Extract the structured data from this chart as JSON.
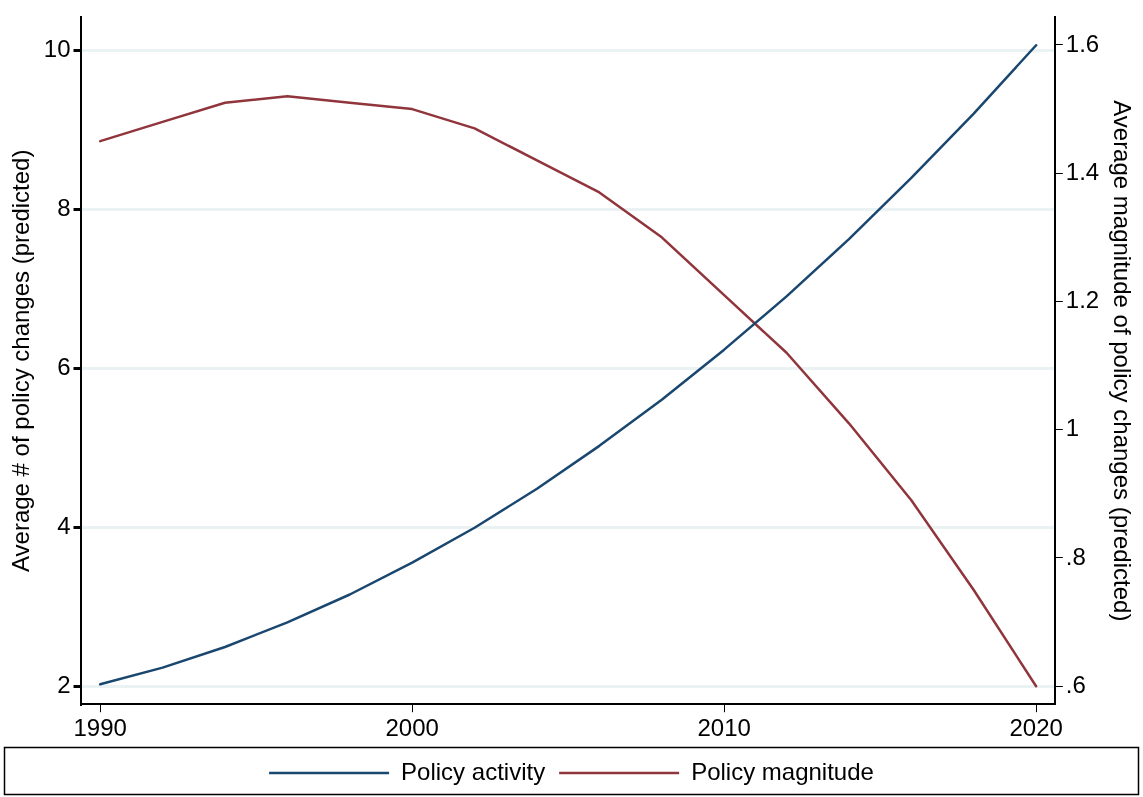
{
  "chart_data": {
    "type": "line",
    "x": [
      1990,
      1992,
      1994,
      1996,
      1998,
      2000,
      2002,
      2004,
      2006,
      2008,
      2010,
      2012,
      2014,
      2016,
      2018,
      2020
    ],
    "series": [
      {
        "name": "Policy activity",
        "color": "#1a476f",
        "values": [
          2.03,
          2.24,
          2.5,
          2.81,
          3.16,
          3.56,
          4.0,
          4.49,
          5.03,
          5.61,
          6.24,
          6.91,
          7.63,
          8.4,
          9.21,
          10.07
        ]
      },
      {
        "name": "Policy magnitude",
        "color": "#90353b",
        "axis": "y2",
        "values": [
          1.45,
          1.48,
          1.51,
          1.52,
          1.51,
          1.5,
          1.47,
          1.42,
          1.37,
          1.3,
          1.21,
          1.12,
          1.01,
          0.89,
          0.75,
          0.6
        ]
      }
    ],
    "ylabel": "Average # of policy changes (predicted)",
    "y2label": "Average magnitude of policy changes (predicted)",
    "xlim": [
      1989.4,
      2020.6
    ],
    "xticks": [
      1990,
      2000,
      2010,
      2020
    ],
    "ylim": [
      1.78,
      10.42
    ],
    "yticks": [
      2,
      4,
      6,
      8,
      10
    ],
    "y2lim": [
      0.572,
      1.643
    ],
    "y2ticks": [
      {
        "value": 0.6,
        "label": ".6"
      },
      {
        "value": 0.8,
        "label": ".8"
      },
      1,
      1.2,
      1.4,
      1.6
    ],
    "grid": "y",
    "legend": "bottom",
    "marker": "none",
    "line_style": "solid"
  }
}
